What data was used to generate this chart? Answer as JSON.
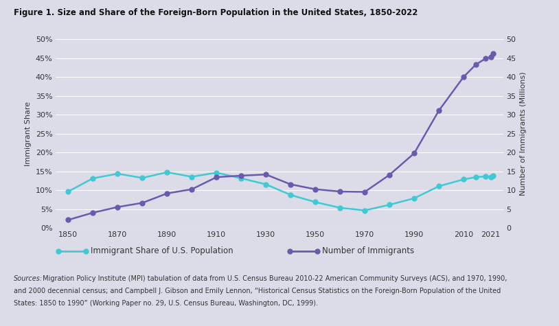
{
  "title": "Figure 1. Size and Share of the Foreign-Born Population in the United States, 1850-2022",
  "background_color": "#dcdce8",
  "plot_bg_color": "#dcdce8",
  "years": [
    1850,
    1860,
    1870,
    1880,
    1890,
    1900,
    1910,
    1920,
    1930,
    1940,
    1950,
    1960,
    1970,
    1980,
    1990,
    2000,
    2010,
    2015,
    2019,
    2021,
    2022
  ],
  "immigrant_share": [
    9.7,
    13.2,
    14.4,
    13.3,
    14.8,
    13.6,
    14.7,
    13.2,
    11.6,
    8.8,
    6.9,
    5.4,
    4.7,
    6.2,
    7.9,
    11.1,
    12.9,
    13.5,
    13.7,
    13.6,
    13.9
  ],
  "num_immigrants": [
    2.2,
    4.1,
    5.6,
    6.7,
    9.2,
    10.3,
    13.5,
    13.9,
    14.2,
    11.6,
    10.3,
    9.7,
    9.6,
    14.1,
    19.8,
    31.1,
    40.0,
    43.3,
    44.9,
    45.3,
    46.2
  ],
  "share_color": "#41c8d5",
  "num_color": "#6a5aad",
  "xlabel_ticks": [
    1850,
    1870,
    1890,
    1910,
    1930,
    1950,
    1970,
    1990,
    2010,
    2021
  ],
  "ylabel_left": "Immigrant Share",
  "ylabel_right": "Number of Immigrants (Millions)",
  "ylim_left": [
    0,
    0.5
  ],
  "ylim_right": [
    0,
    50
  ],
  "legend_share": "Immigrant Share of U.S. Population",
  "legend_num": "Number of Immigrants",
  "sources_bold": "Sources:",
  "sources_rest": " Migration Policy Institute (MPI) tabulation of data from U.S. Census Bureau 2010-22 American Community Surveys (ACS), and 1970, 1990,\nand 2000 decennial census; and Campbell J. Gibson and Emily Lennon, “Historical Census Statistics on the Foreign-Born Population of the United\nStates: 1850 to 1990” (Working Paper no. 29, U.S. Census Bureau, Washington, DC, 1999).",
  "marker_style": "o",
  "marker_size": 5,
  "line_width": 1.8
}
